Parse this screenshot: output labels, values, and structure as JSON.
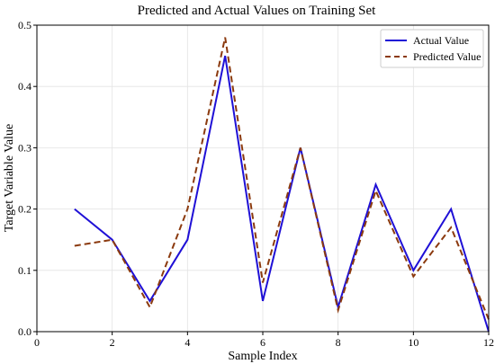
{
  "chart_data": {
    "type": "line",
    "title": "Predicted and Actual Values on Training Set",
    "xlabel": "Sample Index",
    "ylabel": "Target Variable Value",
    "xlim": [
      0,
      12
    ],
    "ylim": [
      0,
      0.5
    ],
    "xticks": [
      "0",
      "2",
      "4",
      "6",
      "8",
      "10",
      "12"
    ],
    "yticks": [
      "0.0",
      "0.1",
      "0.2",
      "0.3",
      "0.4",
      "0.5"
    ],
    "grid": true,
    "legend_position": "top-right",
    "x": [
      1,
      2,
      3,
      4,
      5,
      6,
      7,
      8,
      9,
      10,
      11,
      12
    ],
    "series": [
      {
        "name": "Actual Value",
        "style": "solid",
        "color": "#1f10d6",
        "values": [
          0.2,
          0.15,
          0.05,
          0.15,
          0.45,
          0.05,
          0.3,
          0.04,
          0.24,
          0.1,
          0.2,
          0.0
        ]
      },
      {
        "name": "Predicted Value",
        "style": "dashed",
        "color": "#8b3a0f",
        "values": [
          0.14,
          0.15,
          0.04,
          0.2,
          0.48,
          0.08,
          0.3,
          0.035,
          0.23,
          0.09,
          0.17,
          0.02
        ]
      }
    ]
  }
}
